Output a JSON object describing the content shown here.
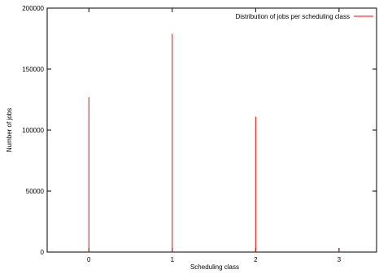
{
  "chart_data": {
    "type": "bar",
    "xlabel": "Scheduling class",
    "ylabel": "Number of jobs",
    "xlim": [
      -0.5,
      3.45
    ],
    "ylim": [
      0,
      200000
    ],
    "x_ticks": [
      0,
      1,
      2,
      3
    ],
    "y_ticks": [
      0,
      50000,
      100000,
      150000,
      200000
    ],
    "legend_position": "top-right",
    "series": [
      {
        "name": "Distribution of jobs per scheduling class",
        "color": "#ff0000",
        "x": [
          0,
          1,
          2,
          3
        ],
        "values": [
          127000,
          179000,
          111000,
          1000
        ]
      }
    ]
  }
}
